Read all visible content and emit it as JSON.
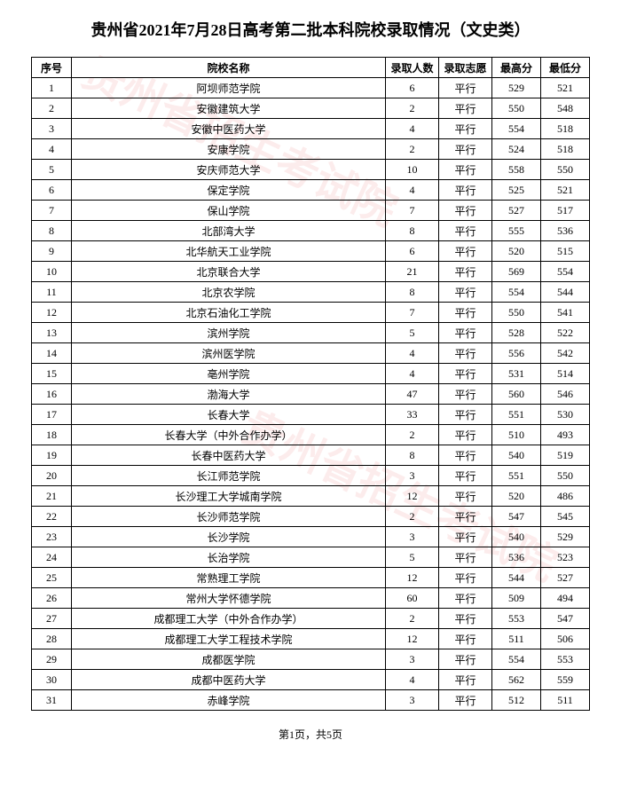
{
  "title": "贵州省2021年7月28日高考第二批本科院校录取情况（文史类）",
  "watermark_text": "贵州省招生考试院",
  "footer": {
    "current_page": "1",
    "total_pages": "5",
    "text_prefix": "第",
    "text_mid": "页，共",
    "text_suffix": "页"
  },
  "table": {
    "headers": {
      "seq": "序号",
      "name": "院校名称",
      "count": "录取人数",
      "volunteer": "录取志愿",
      "max": "最高分",
      "min": "最低分"
    },
    "rows": [
      {
        "seq": "1",
        "name": "阿坝师范学院",
        "count": "6",
        "vol": "平行",
        "max": "529",
        "min": "521"
      },
      {
        "seq": "2",
        "name": "安徽建筑大学",
        "count": "2",
        "vol": "平行",
        "max": "550",
        "min": "548"
      },
      {
        "seq": "3",
        "name": "安徽中医药大学",
        "count": "4",
        "vol": "平行",
        "max": "554",
        "min": "518"
      },
      {
        "seq": "4",
        "name": "安康学院",
        "count": "2",
        "vol": "平行",
        "max": "524",
        "min": "518"
      },
      {
        "seq": "5",
        "name": "安庆师范大学",
        "count": "10",
        "vol": "平行",
        "max": "558",
        "min": "550"
      },
      {
        "seq": "6",
        "name": "保定学院",
        "count": "4",
        "vol": "平行",
        "max": "525",
        "min": "521"
      },
      {
        "seq": "7",
        "name": "保山学院",
        "count": "7",
        "vol": "平行",
        "max": "527",
        "min": "517"
      },
      {
        "seq": "8",
        "name": "北部湾大学",
        "count": "8",
        "vol": "平行",
        "max": "555",
        "min": "536"
      },
      {
        "seq": "9",
        "name": "北华航天工业学院",
        "count": "6",
        "vol": "平行",
        "max": "520",
        "min": "515"
      },
      {
        "seq": "10",
        "name": "北京联合大学",
        "count": "21",
        "vol": "平行",
        "max": "569",
        "min": "554"
      },
      {
        "seq": "11",
        "name": "北京农学院",
        "count": "8",
        "vol": "平行",
        "max": "554",
        "min": "544"
      },
      {
        "seq": "12",
        "name": "北京石油化工学院",
        "count": "7",
        "vol": "平行",
        "max": "550",
        "min": "541"
      },
      {
        "seq": "13",
        "name": "滨州学院",
        "count": "5",
        "vol": "平行",
        "max": "528",
        "min": "522"
      },
      {
        "seq": "14",
        "name": "滨州医学院",
        "count": "4",
        "vol": "平行",
        "max": "556",
        "min": "542"
      },
      {
        "seq": "15",
        "name": "亳州学院",
        "count": "4",
        "vol": "平行",
        "max": "531",
        "min": "514"
      },
      {
        "seq": "16",
        "name": "渤海大学",
        "count": "47",
        "vol": "平行",
        "max": "560",
        "min": "546"
      },
      {
        "seq": "17",
        "name": "长春大学",
        "count": "33",
        "vol": "平行",
        "max": "551",
        "min": "530"
      },
      {
        "seq": "18",
        "name": "长春大学（中外合作办学）",
        "count": "2",
        "vol": "平行",
        "max": "510",
        "min": "493"
      },
      {
        "seq": "19",
        "name": "长春中医药大学",
        "count": "8",
        "vol": "平行",
        "max": "540",
        "min": "519"
      },
      {
        "seq": "20",
        "name": "长江师范学院",
        "count": "3",
        "vol": "平行",
        "max": "551",
        "min": "550"
      },
      {
        "seq": "21",
        "name": "长沙理工大学城南学院",
        "count": "12",
        "vol": "平行",
        "max": "520",
        "min": "486"
      },
      {
        "seq": "22",
        "name": "长沙师范学院",
        "count": "2",
        "vol": "平行",
        "max": "547",
        "min": "545"
      },
      {
        "seq": "23",
        "name": "长沙学院",
        "count": "3",
        "vol": "平行",
        "max": "540",
        "min": "529"
      },
      {
        "seq": "24",
        "name": "长治学院",
        "count": "5",
        "vol": "平行",
        "max": "536",
        "min": "523"
      },
      {
        "seq": "25",
        "name": "常熟理工学院",
        "count": "12",
        "vol": "平行",
        "max": "544",
        "min": "527"
      },
      {
        "seq": "26",
        "name": "常州大学怀德学院",
        "count": "60",
        "vol": "平行",
        "max": "509",
        "min": "494"
      },
      {
        "seq": "27",
        "name": "成都理工大学（中外合作办学）",
        "count": "2",
        "vol": "平行",
        "max": "553",
        "min": "547"
      },
      {
        "seq": "28",
        "name": "成都理工大学工程技术学院",
        "count": "12",
        "vol": "平行",
        "max": "511",
        "min": "506"
      },
      {
        "seq": "29",
        "name": "成都医学院",
        "count": "3",
        "vol": "平行",
        "max": "554",
        "min": "553"
      },
      {
        "seq": "30",
        "name": "成都中医药大学",
        "count": "4",
        "vol": "平行",
        "max": "562",
        "min": "559"
      },
      {
        "seq": "31",
        "name": "赤峰学院",
        "count": "3",
        "vol": "平行",
        "max": "512",
        "min": "511"
      }
    ]
  }
}
